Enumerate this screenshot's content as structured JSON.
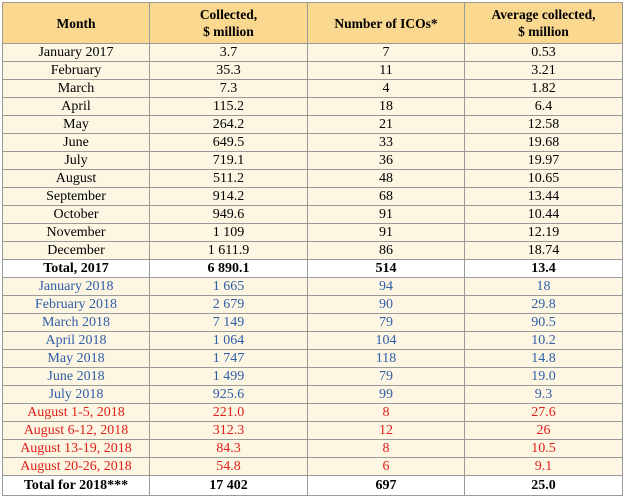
{
  "table": {
    "headers": {
      "month": "Month",
      "collected_line1": "Collected,",
      "collected_line2": "$ million",
      "number": "Number of ICOs*",
      "average_line1": "Average collected,",
      "average_line2": "$ million"
    },
    "rows_2017": [
      {
        "month": "January 2017",
        "collected": "3.7",
        "number": "7",
        "average": "0.53"
      },
      {
        "month": "February",
        "collected": "35.3",
        "number": "11",
        "average": "3.21"
      },
      {
        "month": "March",
        "collected": "7.3",
        "number": "4",
        "average": "1.82"
      },
      {
        "month": "April",
        "collected": "115.2",
        "number": "18",
        "average": "6.4"
      },
      {
        "month": "May",
        "collected": "264.2",
        "number": "21",
        "average": "12.58"
      },
      {
        "month": "June",
        "collected": "649.5",
        "number": "33",
        "average": "19.68"
      },
      {
        "month": "July",
        "collected": "719.1",
        "number": "36",
        "average": "19.97"
      },
      {
        "month": "August",
        "collected": "511.2",
        "number": "48",
        "average": "10.65"
      },
      {
        "month": "September",
        "collected": "914.2",
        "number": "68",
        "average": "13.44"
      },
      {
        "month": "October",
        "collected": "949.6",
        "number": "91",
        "average": "10.44"
      },
      {
        "month": "November",
        "collected": "1 109",
        "number": "91",
        "average": "12.19"
      },
      {
        "month": "December",
        "collected": "1 611.9",
        "number": "86",
        "average": "18.74"
      }
    ],
    "total_2017": {
      "month": "Total, 2017",
      "collected": "6 890.1",
      "number": "514",
      "average": "13.4"
    },
    "rows_2018_monthly": [
      {
        "month": "January 2018",
        "collected": "1 665",
        "number": "94",
        "average": "18"
      },
      {
        "month": "February 2018",
        "collected": "2 679",
        "number": "90",
        "average": "29.8"
      },
      {
        "month": "March 2018",
        "collected": "7 149",
        "number": "79",
        "average": "90.5"
      },
      {
        "month": "April 2018",
        "collected": "1 064",
        "number": "104",
        "average": "10.2"
      },
      {
        "month": "May 2018",
        "collected": "1 747",
        "number": "118",
        "average": "14.8"
      },
      {
        "month": "June 2018",
        "collected": "1 499",
        "number": "79",
        "average": "19.0"
      },
      {
        "month": "July 2018",
        "collected": "925.6",
        "number": "99",
        "average": "9.3"
      }
    ],
    "rows_2018_weekly": [
      {
        "month": "August 1-5, 2018",
        "collected": "221.0",
        "number": "8",
        "average": "27.6"
      },
      {
        "month": "August 6-12, 2018",
        "collected": "312.3",
        "number": "12",
        "average": "26"
      },
      {
        "month": "August 13-19, 2018",
        "collected": "84.3",
        "number": "8",
        "average": "10.5"
      },
      {
        "month": "August 20-26, 2018",
        "collected": "54.8",
        "number": "6",
        "average": "9.1"
      }
    ],
    "total_2018": {
      "month": "Total for 2018***",
      "collected": "17 402",
      "number": "697",
      "average": "25.0"
    },
    "colors": {
      "header_bg": "#fbd88f",
      "row_bg": "#fdf6e3",
      "blue_text": "#2f5ea8",
      "red_text": "#e0201a"
    }
  }
}
